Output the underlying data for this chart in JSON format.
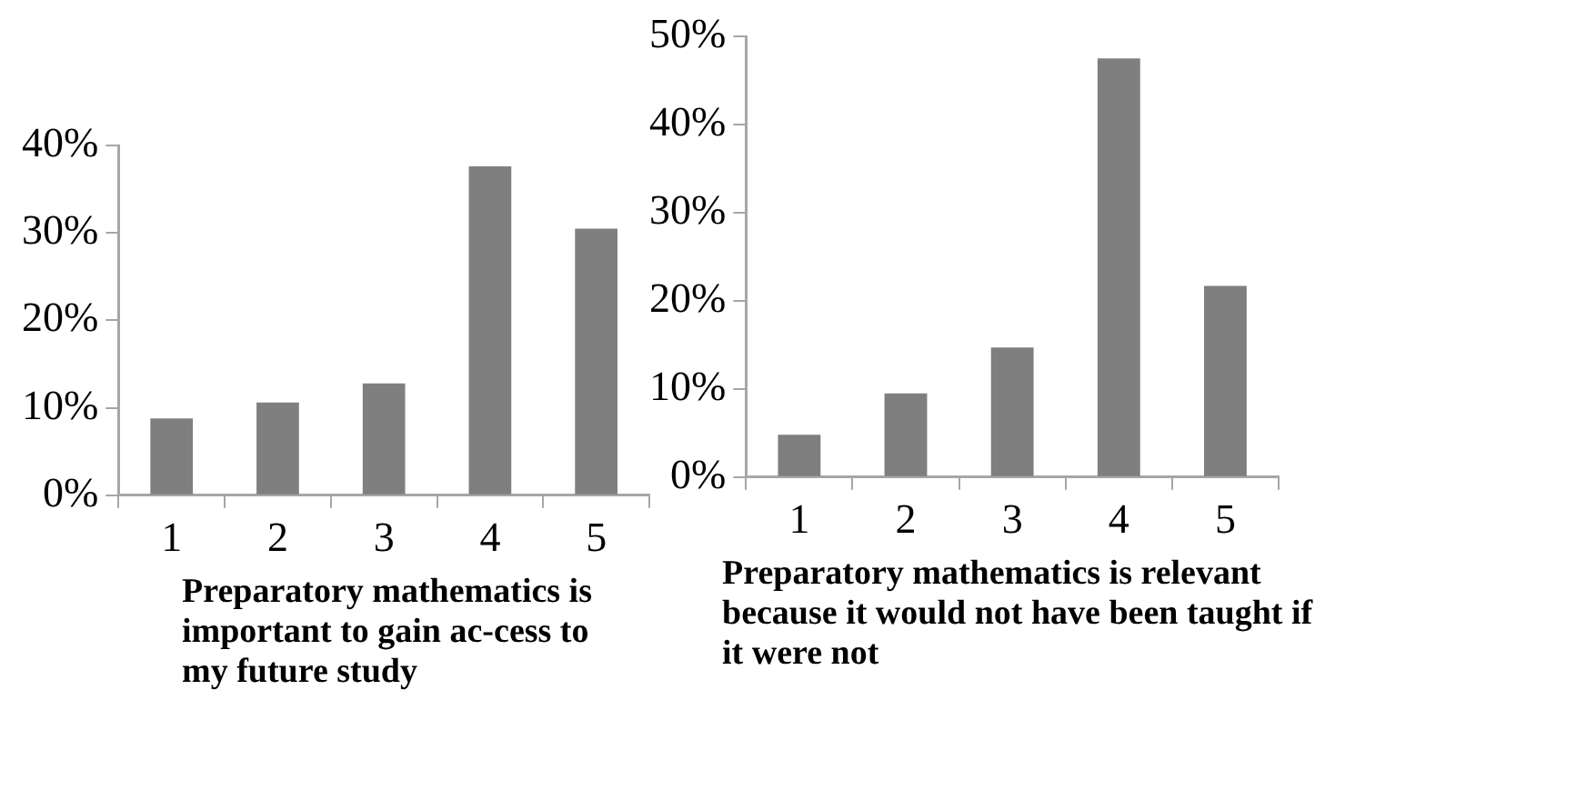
{
  "chart_data": [
    {
      "type": "bar",
      "xlabel": "Preparatory mathematics is important to gain ac-cess to my future study",
      "categories": [
        "1",
        "2",
        "3",
        "4",
        "5"
      ],
      "values": [
        8.8,
        10.6,
        12.8,
        37.6,
        30.5
      ],
      "color": "#7f7f7f",
      "ylim": [
        0,
        40
      ],
      "yticks": [
        {
          "value": 0,
          "label": "0%"
        },
        {
          "value": 10,
          "label": "10%"
        },
        {
          "value": 20,
          "label": "20%"
        },
        {
          "value": 30,
          "label": "30%"
        },
        {
          "value": 40,
          "label": "40%"
        }
      ],
      "grid": false,
      "legend": false
    },
    {
      "type": "bar",
      "xlabel": "Preparatory mathematics is relevant because it would not have been taught if it were not",
      "categories": [
        "1",
        "2",
        "3",
        "4",
        "5"
      ],
      "values": [
        4.8,
        9.5,
        14.7,
        47.5,
        21.7
      ],
      "color": "#7f7f7f",
      "ylim": [
        0,
        50
      ],
      "yticks": [
        {
          "value": 0,
          "label": "0%"
        },
        {
          "value": 10,
          "label": "10%"
        },
        {
          "value": 20,
          "label": "20%"
        },
        {
          "value": 30,
          "label": "30%"
        },
        {
          "value": 40,
          "label": "40%"
        },
        {
          "value": 50,
          "label": "50%"
        }
      ],
      "grid": false,
      "legend": false
    }
  ]
}
